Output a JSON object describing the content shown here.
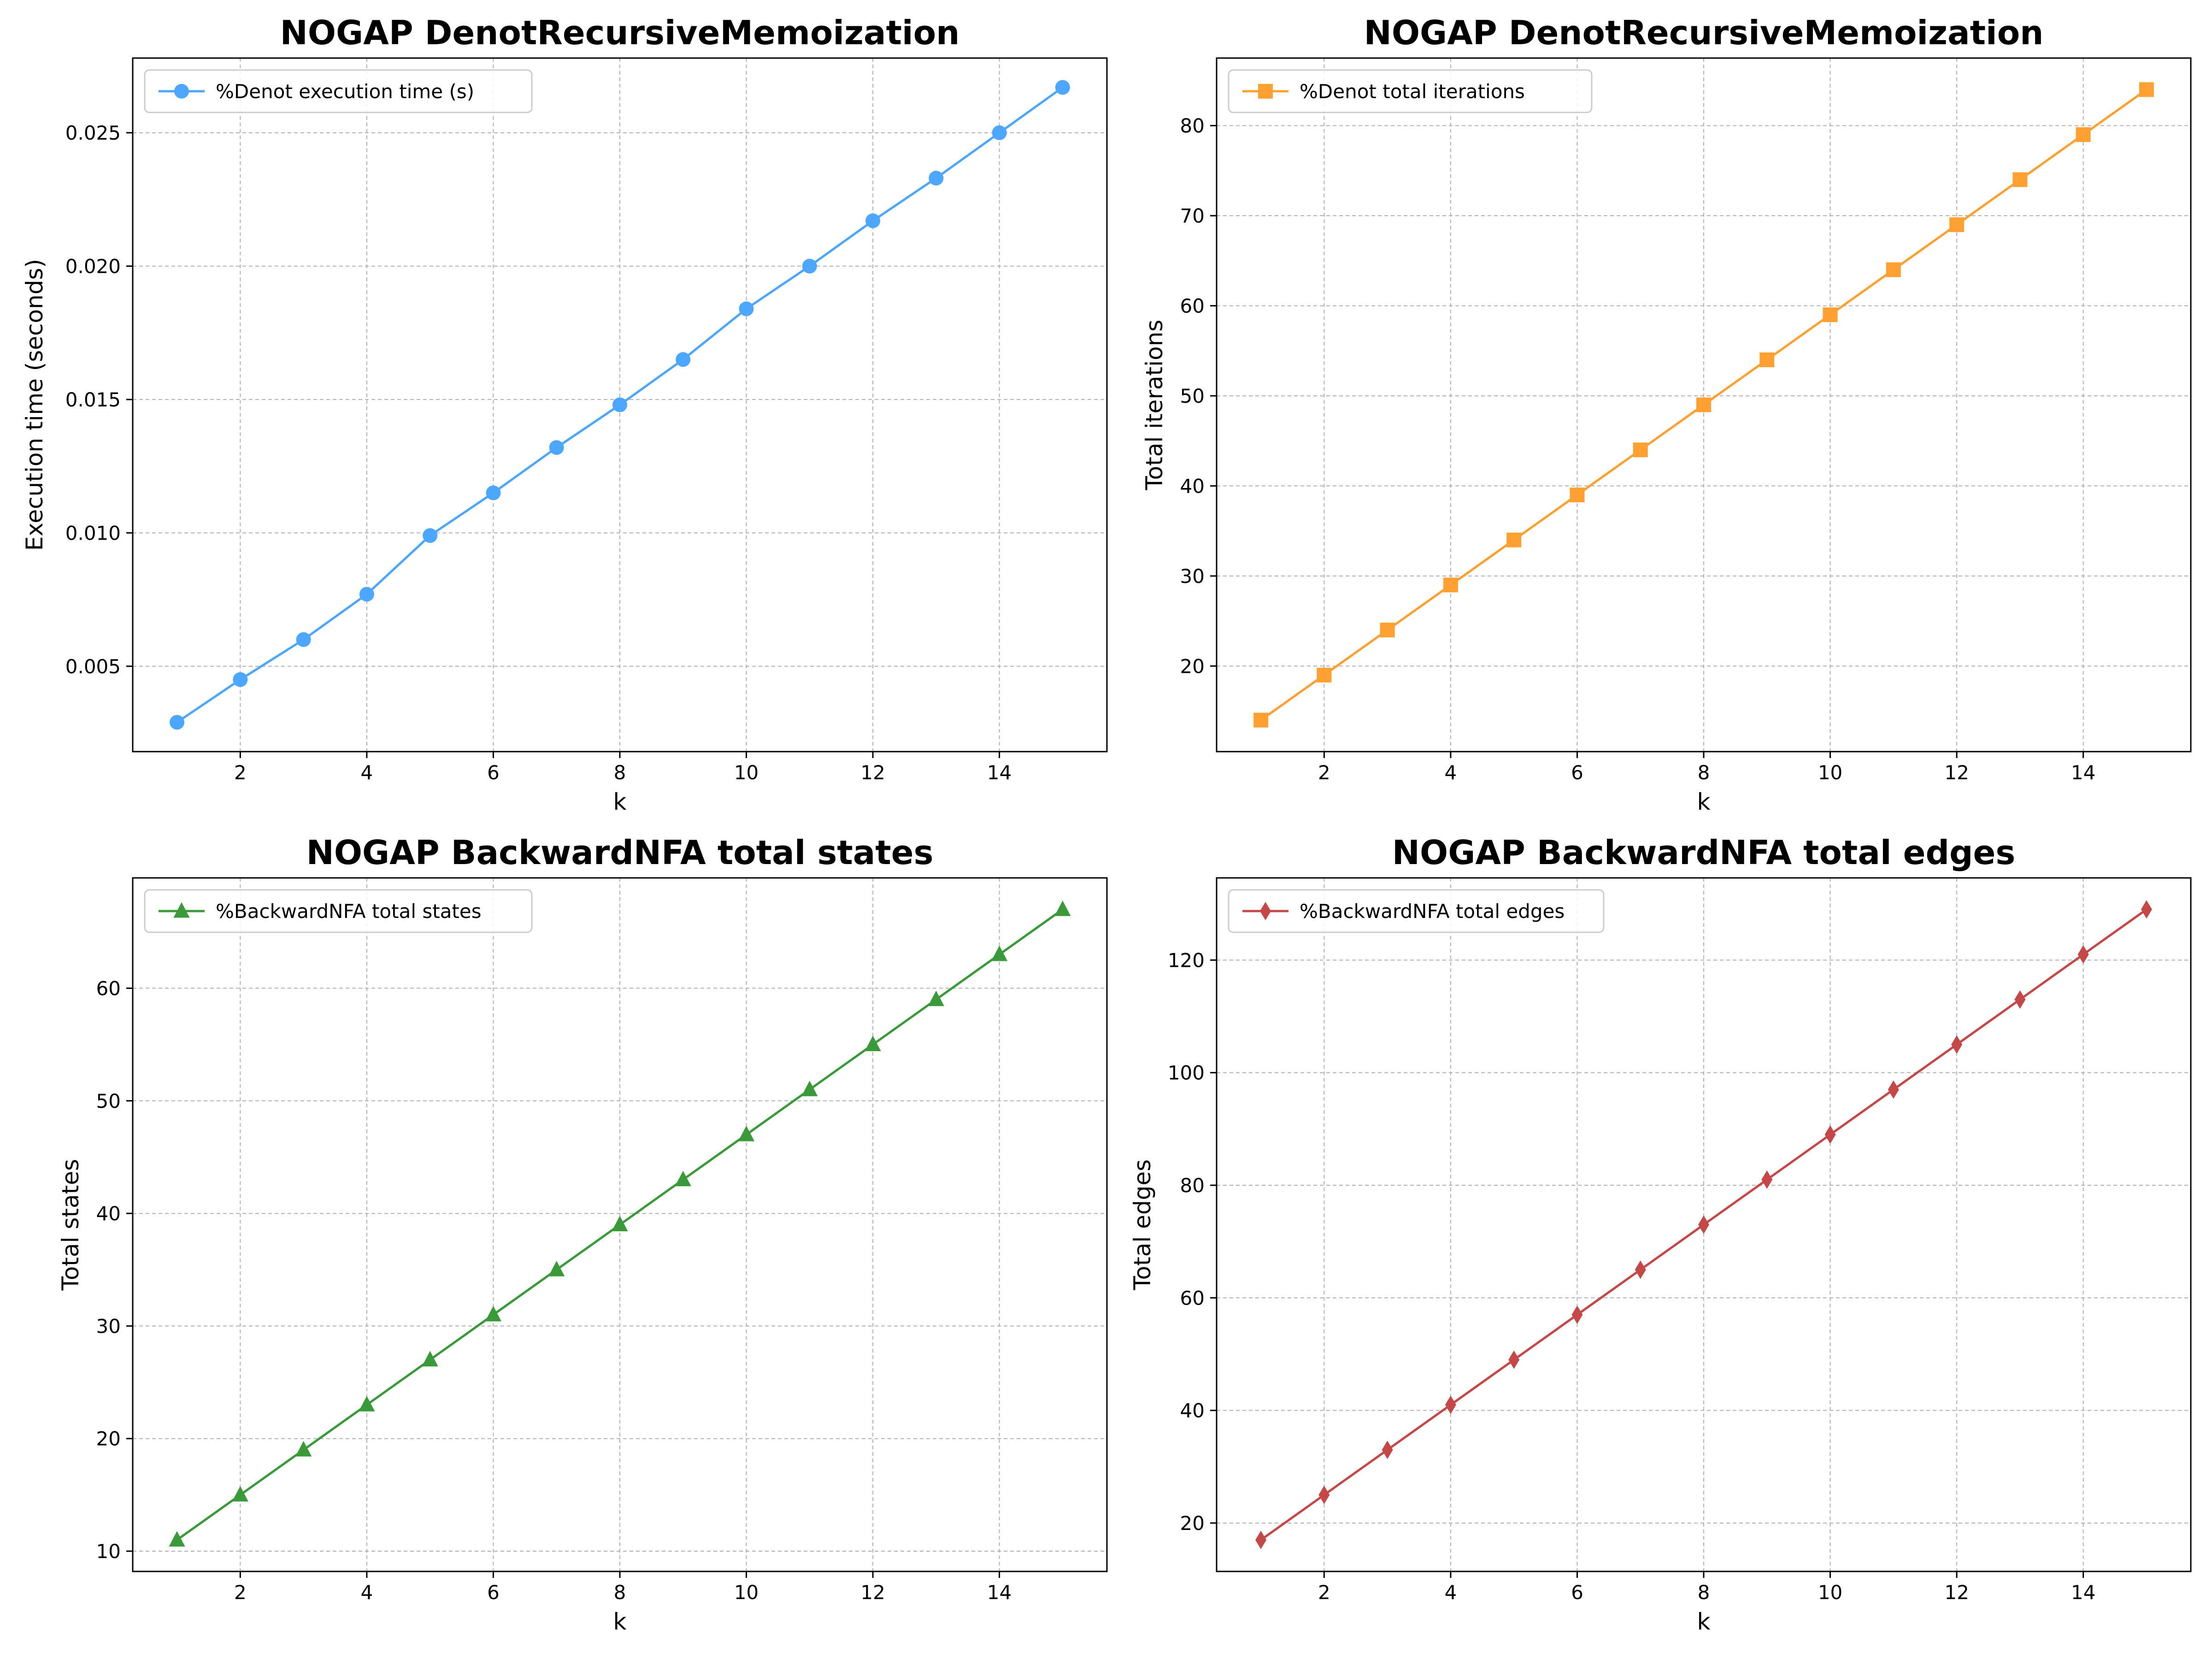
{
  "chart_data": [
    {
      "type": "line",
      "title": "NOGAP DenotRecursiveMemoization",
      "xlabel": "k",
      "ylabel": "Execution time (seconds)",
      "x": [
        1,
        2,
        3,
        4,
        5,
        6,
        7,
        8,
        9,
        10,
        11,
        12,
        13,
        14,
        15
      ],
      "xlim": [
        0.3,
        15.7
      ],
      "xticks": [
        2,
        4,
        6,
        8,
        10,
        12,
        14
      ],
      "ylim": [
        0.0018,
        0.0278
      ],
      "yticks": [
        0.005,
        0.01,
        0.015,
        0.02,
        0.025
      ],
      "ytick_labels": [
        "0.005",
        "0.010",
        "0.015",
        "0.020",
        "0.025"
      ],
      "grid": true,
      "legend_position": "upper-left",
      "series": [
        {
          "name": "%Denot execution time (s)",
          "color": "#4da6ff",
          "marker": "circle",
          "values": [
            0.0029,
            0.0045,
            0.006,
            0.0077,
            0.0099,
            0.0115,
            0.0132,
            0.0148,
            0.0165,
            0.0184,
            0.02,
            0.0217,
            0.0233,
            0.025,
            0.0267
          ]
        }
      ]
    },
    {
      "type": "line",
      "title": "NOGAP DenotRecursiveMemoization",
      "xlabel": "k",
      "ylabel": "Total iterations",
      "x": [
        1,
        2,
        3,
        4,
        5,
        6,
        7,
        8,
        9,
        10,
        11,
        12,
        13,
        14,
        15
      ],
      "xlim": [
        0.3,
        15.7
      ],
      "xticks": [
        2,
        4,
        6,
        8,
        10,
        12,
        14
      ],
      "ylim": [
        10.5,
        87.5
      ],
      "yticks": [
        20,
        30,
        40,
        50,
        60,
        70,
        80
      ],
      "ytick_labels": [
        "20",
        "30",
        "40",
        "50",
        "60",
        "70",
        "80"
      ],
      "grid": true,
      "legend_position": "upper-left",
      "series": [
        {
          "name": "%Denot total iterations",
          "color": "#ffa033",
          "marker": "square",
          "values": [
            14,
            19,
            24,
            29,
            34,
            39,
            44,
            49,
            54,
            59,
            64,
            69,
            74,
            79,
            84
          ]
        }
      ]
    },
    {
      "type": "line",
      "title": "NOGAP BackwardNFA total states",
      "xlabel": "k",
      "ylabel": "Total states",
      "x": [
        1,
        2,
        3,
        4,
        5,
        6,
        7,
        8,
        9,
        10,
        11,
        12,
        13,
        14,
        15
      ],
      "xlim": [
        0.3,
        15.7
      ],
      "xticks": [
        2,
        4,
        6,
        8,
        10,
        12,
        14
      ],
      "ylim": [
        8.2,
        69.8
      ],
      "yticks": [
        10,
        20,
        30,
        40,
        50,
        60
      ],
      "ytick_labels": [
        "10",
        "20",
        "30",
        "40",
        "50",
        "60"
      ],
      "grid": true,
      "legend_position": "upper-left",
      "series": [
        {
          "name": "%BackwardNFA total states",
          "color": "#3a9a3a",
          "marker": "triangle",
          "values": [
            11,
            15,
            19,
            23,
            27,
            31,
            35,
            39,
            43,
            47,
            51,
            55,
            59,
            63,
            67
          ]
        }
      ]
    },
    {
      "type": "line",
      "title": "NOGAP BackwardNFA total edges",
      "xlabel": "k",
      "ylabel": "Total edges",
      "x": [
        1,
        2,
        3,
        4,
        5,
        6,
        7,
        8,
        9,
        10,
        11,
        12,
        13,
        14,
        15
      ],
      "xlim": [
        0.3,
        15.7
      ],
      "xticks": [
        2,
        4,
        6,
        8,
        10,
        12,
        14
      ],
      "ylim": [
        11.4,
        134.6
      ],
      "yticks": [
        20,
        40,
        60,
        80,
        100,
        120
      ],
      "ytick_labels": [
        "20",
        "40",
        "60",
        "80",
        "100",
        "120"
      ],
      "grid": true,
      "legend_position": "upper-left",
      "series": [
        {
          "name": "%BackwardNFA total edges",
          "color": "#c44848",
          "marker": "diamond",
          "values": [
            17,
            25,
            33,
            41,
            49,
            57,
            65,
            73,
            81,
            89,
            97,
            105,
            113,
            121,
            129
          ]
        }
      ]
    }
  ]
}
